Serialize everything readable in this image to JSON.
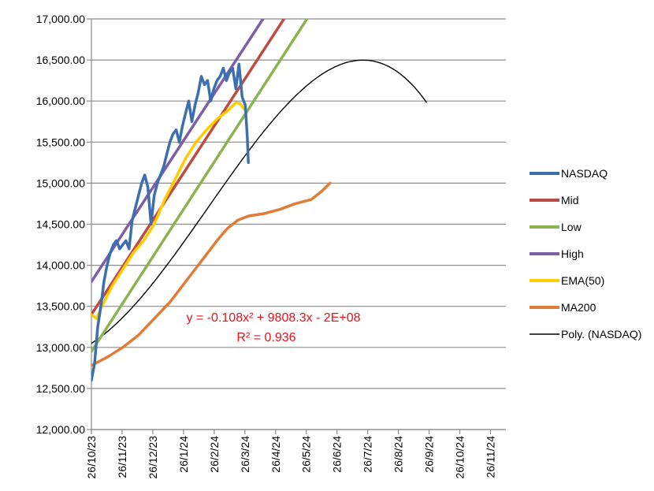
{
  "chart_data": {
    "type": "line",
    "title": "",
    "xlabel": "",
    "ylabel": "",
    "ylim": [
      12000,
      17000
    ],
    "y_ticks": [
      "12,000.00",
      "12,500.00",
      "13,000.00",
      "13,500.00",
      "14,000.00",
      "14,500.00",
      "15,000.00",
      "15,500.00",
      "16,000.00",
      "16,500.00",
      "17,000.00"
    ],
    "x_ticks": [
      "26/10/23",
      "26/11/23",
      "26/12/23",
      "26/1/24",
      "26/2/24",
      "26/3/24",
      "26/4/24",
      "26/5/24",
      "26/6/24",
      "26/7/24",
      "26/8/24",
      "26/9/24",
      "26/10/24",
      "26/11/24"
    ],
    "grid": "horizontal",
    "legend_position": "right",
    "trendline": {
      "equation": "y = -0.108x² + 9808.3x - 2E+08",
      "r_squared": "R² = 0.936"
    },
    "series": [
      {
        "name": "NASDAQ",
        "color": "#3d6fb0",
        "points": [
          [
            0,
            12600
          ],
          [
            3,
            12800
          ],
          [
            6,
            13250
          ],
          [
            9,
            13500
          ],
          [
            12,
            13800
          ],
          [
            15,
            14000
          ],
          [
            18,
            14150
          ],
          [
            21,
            14250
          ],
          [
            24,
            14300
          ],
          [
            27,
            14200
          ],
          [
            30,
            14250
          ],
          [
            33,
            14300
          ],
          [
            36,
            14200
          ],
          [
            39,
            14550
          ],
          [
            42,
            14700
          ],
          [
            45,
            14850
          ],
          [
            48,
            15000
          ],
          [
            51,
            15100
          ],
          [
            54,
            14950
          ],
          [
            57,
            14500
          ],
          [
            60,
            14850
          ],
          [
            63,
            15000
          ],
          [
            66,
            15100
          ],
          [
            69,
            15200
          ],
          [
            72,
            15350
          ],
          [
            75,
            15500
          ],
          [
            78,
            15600
          ],
          [
            81,
            15650
          ],
          [
            84,
            15500
          ],
          [
            87,
            15700
          ],
          [
            90,
            15850
          ],
          [
            93,
            16000
          ],
          [
            96,
            15750
          ],
          [
            99,
            15950
          ],
          [
            102,
            16100
          ],
          [
            105,
            16300
          ],
          [
            108,
            16200
          ],
          [
            111,
            16250
          ],
          [
            114,
            16000
          ],
          [
            117,
            16150
          ],
          [
            120,
            16250
          ],
          [
            123,
            16300
          ],
          [
            126,
            16400
          ],
          [
            129,
            16250
          ],
          [
            132,
            16350
          ],
          [
            135,
            16400
          ],
          [
            138,
            16150
          ],
          [
            141,
            16450
          ],
          [
            144,
            16050
          ],
          [
            147,
            15950
          ],
          [
            149,
            15550
          ],
          [
            150,
            15250
          ]
        ]
      },
      {
        "name": "Mid",
        "color": "#bf4b45",
        "points": [
          [
            0,
            13400
          ],
          [
            184,
            17000
          ]
        ]
      },
      {
        "name": "Low",
        "color": "#8db350",
        "points": [
          [
            0,
            12950
          ],
          [
            206,
            17000
          ]
        ]
      },
      {
        "name": "High",
        "color": "#7f5ea8",
        "points": [
          [
            0,
            13800
          ],
          [
            164,
            17000
          ]
        ]
      },
      {
        "name": "EMA(50)",
        "color": "#ffcc00",
        "points": [
          [
            0,
            13400
          ],
          [
            5,
            13350
          ],
          [
            10,
            13500
          ],
          [
            20,
            13750
          ],
          [
            30,
            13950
          ],
          [
            40,
            14150
          ],
          [
            50,
            14300
          ],
          [
            60,
            14500
          ],
          [
            70,
            14800
          ],
          [
            80,
            15050
          ],
          [
            90,
            15300
          ],
          [
            100,
            15500
          ],
          [
            110,
            15650
          ],
          [
            120,
            15780
          ],
          [
            130,
            15880
          ],
          [
            138,
            15980
          ],
          [
            142,
            15970
          ],
          [
            146,
            15900
          ]
        ]
      },
      {
        "name": "MA200",
        "color": "#e07b39",
        "points": [
          [
            0,
            12780
          ],
          [
            15,
            12880
          ],
          [
            30,
            13000
          ],
          [
            45,
            13150
          ],
          [
            60,
            13350
          ],
          [
            75,
            13550
          ],
          [
            90,
            13800
          ],
          [
            105,
            14050
          ],
          [
            120,
            14300
          ],
          [
            130,
            14450
          ],
          [
            140,
            14550
          ],
          [
            150,
            14600
          ],
          [
            165,
            14630
          ],
          [
            180,
            14680
          ],
          [
            195,
            14750
          ],
          [
            210,
            14800
          ],
          [
            220,
            14900
          ],
          [
            228,
            15000
          ]
        ]
      },
      {
        "name": "Poly. (NASDAQ)",
        "color": "#000000",
        "poly": {
          "a": -0.000276,
          "b": 0.092,
          "c": 8.0,
          "d": 13050
        }
      }
    ]
  }
}
